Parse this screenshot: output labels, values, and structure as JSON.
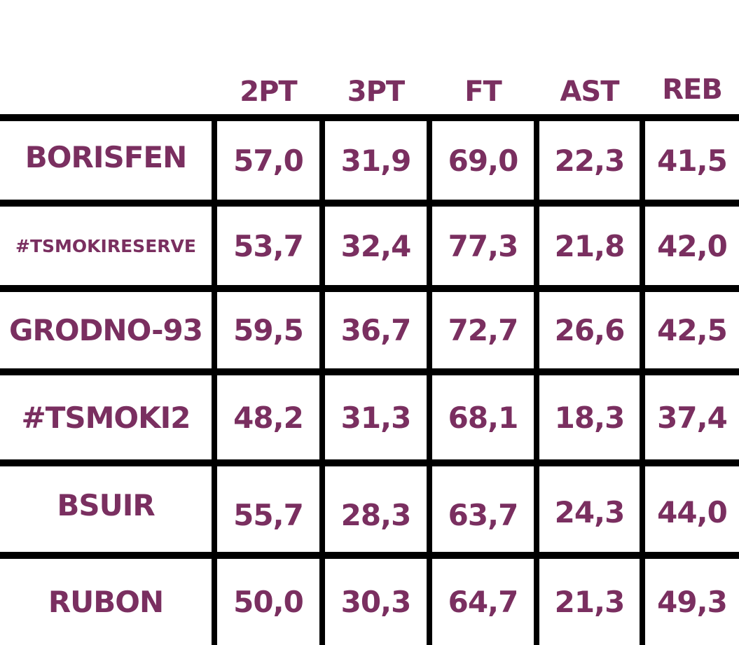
{
  "accent_color": "#7a2f60",
  "columns": [
    "2PT",
    "3PT",
    "FT",
    "AST",
    "REB"
  ],
  "rows": [
    {
      "team": "BORISFEN",
      "values": [
        "57,0",
        "31,9",
        "69,0",
        "22,3",
        "41,5"
      ]
    },
    {
      "team": "#TSMOKIRESERVE",
      "values": [
        "53,7",
        "32,4",
        "77,3",
        "21,8",
        "42,0"
      ]
    },
    {
      "team": "GRODNO-93",
      "values": [
        "59,5",
        "36,7",
        "72,7",
        "26,6",
        "42,5"
      ]
    },
    {
      "team": "#TSMOKI2",
      "values": [
        "48,2",
        "31,3",
        "68,1",
        "18,3",
        "37,4"
      ]
    },
    {
      "team": "BSUIR",
      "values": [
        "55,7",
        "28,3",
        "63,7",
        "24,3",
        "44,0"
      ]
    },
    {
      "team": "RUBON",
      "values": [
        "50,0",
        "30,3",
        "64,7",
        "21,3",
        "49,3"
      ]
    }
  ]
}
